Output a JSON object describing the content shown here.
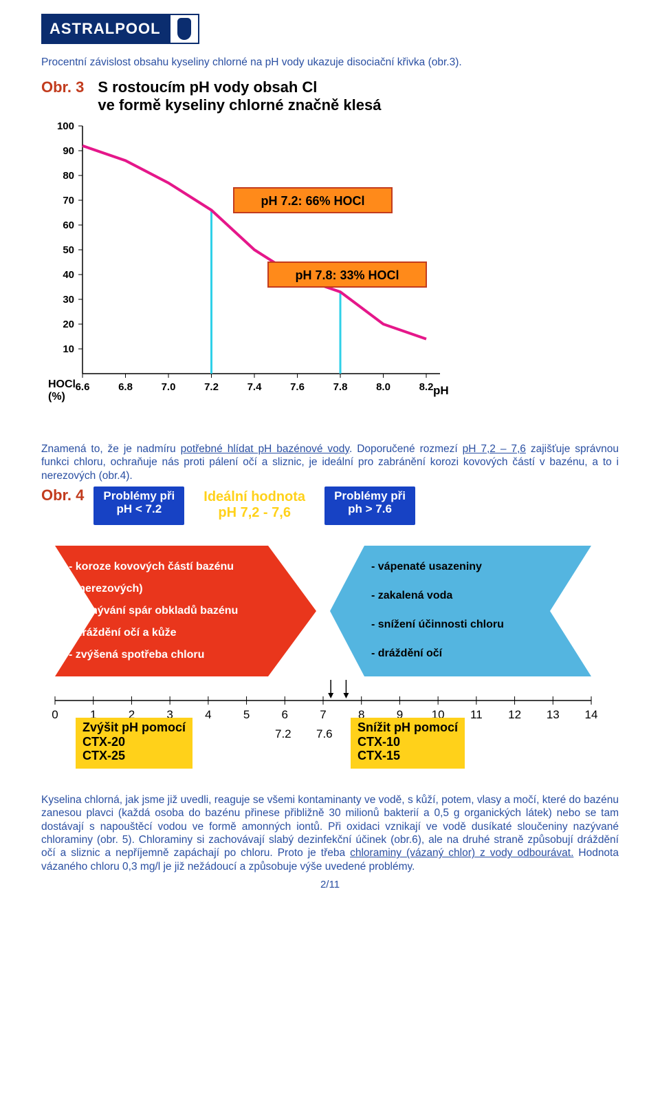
{
  "logo": {
    "text": "ASTRALPOOL"
  },
  "intro_text": "Procentní závislost obsahu kyseliny chlorné na pH vody ukazuje disociační křivka (obr.3).",
  "chart1": {
    "obr_label": "Obr. 3",
    "title_l1": "S rostoucím pH vody obsah Cl",
    "title_l2": "ve formě kyseliny chlorné značně klesá",
    "ylabel_top": "HOCl",
    "ylabel_bot": "(%)",
    "xlabel": "pH",
    "y_ticks": [
      100,
      90,
      80,
      70,
      60,
      50,
      40,
      30,
      20,
      10
    ],
    "x_ticks": [
      "6.6",
      "6.8",
      "7.0",
      "7.2",
      "7.4",
      "7.6",
      "7.8",
      "8.0",
      "8.2"
    ],
    "curve": [
      {
        "x": 6.6,
        "y": 92
      },
      {
        "x": 6.8,
        "y": 86
      },
      {
        "x": 7.0,
        "y": 77
      },
      {
        "x": 7.2,
        "y": 66
      },
      {
        "x": 7.4,
        "y": 50
      },
      {
        "x": 7.6,
        "y": 39
      },
      {
        "x": 7.8,
        "y": 33
      },
      {
        "x": 8.0,
        "y": 20
      },
      {
        "x": 8.2,
        "y": 14
      }
    ],
    "curve_color": "#e5178a",
    "marker_color": "#2fd0e8",
    "box1": "pH 7.2:  66% HOCl",
    "box2": "pH 7.8:  33% HOCl",
    "box_fill": "#ff8a1a",
    "box_stroke": "#c23c1e"
  },
  "para1_pre": "Znamená to, že je nadmíru ",
  "para1_ul": "potřebné hlídat pH bazénové vody",
  "para1_mid": ". Doporučené rozmezí ",
  "para1_ul2": "pH 7,2 – 7,6",
  "para1_post": " zajišťuje správnou funkci chloru, ochraňuje nás proti pálení očí a sliznic, je ideální pro zabránění korozi kovových částí v bazénu, a to  i nerezových (obr.4).",
  "obr4": {
    "label": "Obr. 4",
    "prob_low_l1": "Problémy při",
    "prob_low_l2": "pH < 7.2",
    "ideal_l1": "Ideální hodnota",
    "ideal_l2": "pH 7,2 - 7,6",
    "prob_high_l1": "Problémy při",
    "prob_high_l2": "ph > 7.6",
    "left_items": [
      "- koroze kovových částí bazénu",
      "  (i nerezových)",
      "- vymývání spár obkladů bazénu",
      "- dráždění očí a kůže",
      "- zvýšená spotřeba chloru"
    ],
    "right_items": [
      "- vápenaté usazeniny",
      "- zakalená voda",
      "- snížení účinnosti chloru",
      "- dráždění očí"
    ],
    "left_fill": "#e9361c",
    "right_fill": "#54b5e0",
    "scale_ticks": [
      0,
      1,
      2,
      3,
      4,
      5,
      6,
      7,
      8,
      9,
      10,
      11,
      12,
      13,
      14
    ],
    "mid_l": "7.2",
    "mid_r": "7.6",
    "zvysit_l1": "Zvýšit pH pomocí",
    "zvysit_l2": "CTX-20",
    "zvysit_l3": "CTX-25",
    "snizit_l1": "Snížit pH pomocí",
    "snizit_l2": "CTX-10",
    "snizit_l3": "CTX-15"
  },
  "final_pre": "Kyselina chlorná, jak jsme již uvedli, reaguje se všemi kontaminanty ve vodě, s kůží, potem, vlasy a močí, které do bazénu zanesou plavci (každá osoba do bazénu přinese přibližně 30 milionů bakterií a 0,5 g organických látek) nebo se tam dostávají s napouštěcí vodou ve formě amonných iontů. Při oxidaci vznikají ve vodě dusíkaté sloučeniny nazývané chloraminy (obr. 5). Chloraminy si zachovávají slabý dezinfekční účinek (obr.6), ale na druhé straně způsobují dráždění očí a sliznic a nepříjemně zapáchají po chloru. Proto je třeba ",
  "final_ul": "chloraminy (vázaný chlor) z vody odbourávat.",
  "final_post": " Hodnota vázaného chloru 0,3 mg/l je již nežádoucí a způsobuje výše uvedené problémy.",
  "pagenum": "2/11"
}
